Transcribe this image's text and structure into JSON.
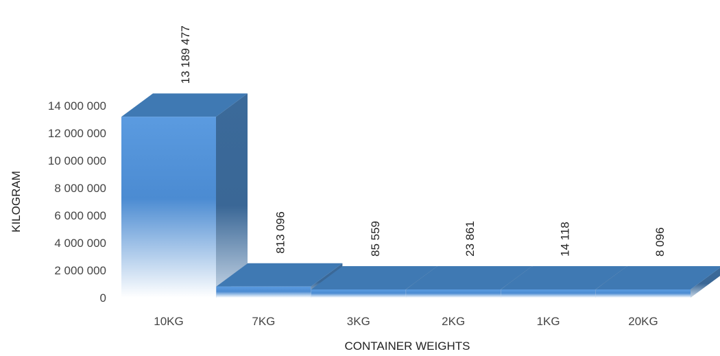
{
  "chart_data": {
    "type": "bar",
    "title": "",
    "xlabel": "CONTAINER WEIGHTS",
    "ylabel": "KILOGRAM",
    "categories": [
      "10KG",
      "7KG",
      "3KG",
      "2KG",
      "1KG",
      "20KG"
    ],
    "values": [
      13189477,
      813096,
      85559,
      23861,
      14118,
      8096
    ],
    "data_labels": [
      "13 189 477",
      "813 096",
      "85 559",
      "23 861",
      "14 118",
      "8 096"
    ],
    "ylim": [
      0,
      14000000
    ],
    "y_ticks": [
      0,
      2000000,
      4000000,
      6000000,
      8000000,
      10000000,
      12000000,
      14000000
    ],
    "y_tick_labels": [
      "0",
      "2 000 000",
      "4 000 000",
      "6 000 000",
      "8 000 000",
      "10 000 000",
      "12 000 000",
      "14 000 000"
    ],
    "grid": false,
    "legend": "none",
    "style": "3d",
    "colors": {
      "front": "#4f8fd4",
      "top": "#3f79b3",
      "side": "#35628f"
    }
  }
}
